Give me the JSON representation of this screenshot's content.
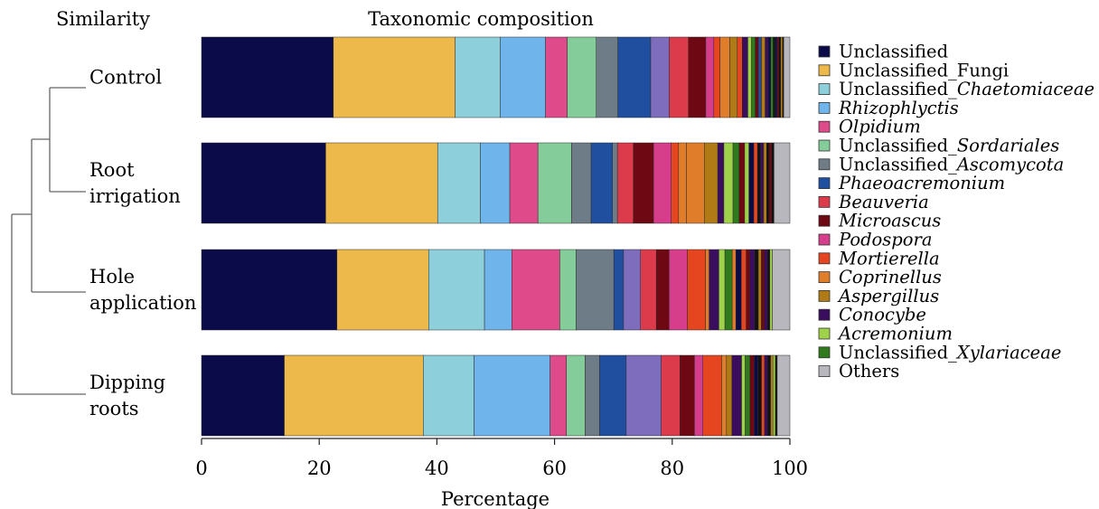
{
  "chart_data": {
    "type": "bar",
    "orientation": "horizontal",
    "stacked": true,
    "title": "Taxonomic composition",
    "dendrogram_title": "Similarity",
    "xlabel": "Percentage",
    "ylabel": "",
    "xlim": [
      0,
      100
    ],
    "xticks": [
      0,
      20,
      40,
      60,
      80,
      100
    ],
    "grid": false,
    "legend_position": "right",
    "categories": [
      "Control",
      "Root irrigation",
      "Hole application",
      "Dipping roots"
    ],
    "category_lines": [
      [
        "Control"
      ],
      [
        "Root",
        "irrigation"
      ],
      [
        "Hole",
        "application"
      ],
      [
        "Dipping",
        "roots"
      ]
    ],
    "legend": [
      {
        "label": "Unclassified",
        "color": "#0b0b4a",
        "italic": false
      },
      {
        "label": "Unclassified_Fungi",
        "color": "#ecb94a",
        "italic": false
      },
      {
        "label": "Unclassified_",
        "label_italic": "Chaetomiaceae",
        "color": "#8ecfdc",
        "italic": false
      },
      {
        "label": "Rhizophlyctis",
        "color": "#6fb4ea",
        "italic": true
      },
      {
        "label": "Olpidium",
        "color": "#df4b8a",
        "italic": true
      },
      {
        "label": "Unclassified_",
        "label_italic": "Sordariales",
        "color": "#84cc9a",
        "italic": false
      },
      {
        "label": "Unclassified_",
        "label_italic": "Ascomycota",
        "color": "#6e7c88",
        "italic": false
      },
      {
        "label": "Phaeoacremonium",
        "color": "#1f4f9e",
        "italic": true
      },
      {
        "label": "Beauveria",
        "color": "#dc3b4c",
        "italic": true
      },
      {
        "label": "Microascus",
        "color": "#6e0812",
        "italic": true
      },
      {
        "label": "Podospora",
        "color": "#d63e8c",
        "italic": true
      },
      {
        "label": "Mortierella",
        "color": "#e5461f",
        "italic": true
      },
      {
        "label": "Coprinellus",
        "color": "#e07d2a",
        "italic": true
      },
      {
        "label": "Aspergillus",
        "color": "#b07a17",
        "italic": true
      },
      {
        "label": "Conocybe",
        "color": "#3b0d5e",
        "italic": true
      },
      {
        "label": "Acremonium",
        "color": "#9fd14a",
        "italic": true
      },
      {
        "label": "Unclassified_",
        "label_italic": "Xylariaceae",
        "color": "#2f7a1c",
        "italic": false
      },
      {
        "label": "Others",
        "color": "#b7b7bd",
        "italic": false
      }
    ],
    "series": [
      {
        "name": "Control",
        "values": [
          {
            "value": 21.3,
            "color": "#0b0b4a"
          },
          {
            "value": 19.7,
            "color": "#ecb94a"
          },
          {
            "value": 7.3,
            "color": "#8ecfdc"
          },
          {
            "value": 7.3,
            "color": "#6fb4ea"
          },
          {
            "value": 3.5,
            "color": "#df4b8a"
          },
          {
            "value": 4.7,
            "color": "#84cc9a"
          },
          {
            "value": 3.5,
            "color": "#6e7c88"
          },
          {
            "value": 5.3,
            "color": "#1f4f9e"
          },
          {
            "value": 3.0,
            "color": "#7d6dbc"
          },
          {
            "value": 3.1,
            "color": "#dc3b4c"
          },
          {
            "value": 2.8,
            "color": "#6e0812"
          },
          {
            "value": 1.3,
            "color": "#d63e8c"
          },
          {
            "value": 1.0,
            "color": "#e5461f"
          },
          {
            "value": 1.6,
            "color": "#e07d2a"
          },
          {
            "value": 1.2,
            "color": "#b07a17"
          },
          {
            "value": 0.8,
            "color": "#e5461f"
          },
          {
            "value": 0.9,
            "color": "#3b0d5e"
          },
          {
            "value": 0.6,
            "color": "#9fd14a"
          },
          {
            "value": 0.6,
            "color": "#2f7a1c"
          },
          {
            "value": 0.5,
            "color": "#6e0812"
          },
          {
            "value": 0.5,
            "color": "#1f4f9e"
          },
          {
            "value": 0.6,
            "color": "#b07a17"
          },
          {
            "value": 0.5,
            "color": "#3b0d5e"
          },
          {
            "value": 0.4,
            "color": "#0b0b4a"
          },
          {
            "value": 0.4,
            "color": "#2f7a1c"
          },
          {
            "value": 0.3,
            "color": "#111111"
          },
          {
            "value": 0.3,
            "color": "#0b0b4a"
          },
          {
            "value": 0.3,
            "color": "#6e0812"
          },
          {
            "value": 0.3,
            "color": "#111111"
          },
          {
            "value": 0.3,
            "color": "#b07a17"
          },
          {
            "value": 0.2,
            "color": "#111111"
          },
          {
            "value": 1.0,
            "color": "#b7b7bd"
          }
        ]
      },
      {
        "name": "Root irrigation",
        "values": [
          {
            "value": 20.3,
            "color": "#0b0b4a"
          },
          {
            "value": 18.3,
            "color": "#ecb94a"
          },
          {
            "value": 7.0,
            "color": "#8ecfdc"
          },
          {
            "value": 4.8,
            "color": "#6fb4ea"
          },
          {
            "value": 4.6,
            "color": "#df4b8a"
          },
          {
            "value": 5.5,
            "color": "#84cc9a"
          },
          {
            "value": 3.2,
            "color": "#6e7c88"
          },
          {
            "value": 3.5,
            "color": "#1f4f9e"
          },
          {
            "value": 0.8,
            "color": "#6e7c88"
          },
          {
            "value": 2.6,
            "color": "#dc3b4c"
          },
          {
            "value": 3.3,
            "color": "#6e0812"
          },
          {
            "value": 2.9,
            "color": "#d63e8c"
          },
          {
            "value": 1.2,
            "color": "#e5461f"
          },
          {
            "value": 1.3,
            "color": "#e07d2a"
          },
          {
            "value": 2.9,
            "color": "#e07d2a"
          },
          {
            "value": 2.2,
            "color": "#b07a17"
          },
          {
            "value": 1.0,
            "color": "#3b0d5e"
          },
          {
            "value": 1.5,
            "color": "#9fd14a"
          },
          {
            "value": 1.0,
            "color": "#2f7a1c"
          },
          {
            "value": 0.9,
            "color": "#6e0812"
          },
          {
            "value": 0.7,
            "color": "#9fd14a"
          },
          {
            "value": 0.8,
            "color": "#0b0b4a"
          },
          {
            "value": 0.6,
            "color": "#e5461f"
          },
          {
            "value": 0.5,
            "color": "#111111"
          },
          {
            "value": 0.5,
            "color": "#3b0d5e"
          },
          {
            "value": 0.5,
            "color": "#b07a17"
          },
          {
            "value": 0.4,
            "color": "#111111"
          },
          {
            "value": 0.4,
            "color": "#6e0812"
          },
          {
            "value": 0.4,
            "color": "#111111"
          },
          {
            "value": 2.6,
            "color": "#b7b7bd"
          }
        ]
      },
      {
        "name": "Hole application",
        "values": [
          {
            "value": 22.3,
            "color": "#0b0b4a"
          },
          {
            "value": 15.1,
            "color": "#ecb94a"
          },
          {
            "value": 9.2,
            "color": "#8ecfdc"
          },
          {
            "value": 4.5,
            "color": "#6fb4ea"
          },
          {
            "value": 7.9,
            "color": "#df4b8a"
          },
          {
            "value": 2.7,
            "color": "#84cc9a"
          },
          {
            "value": 6.2,
            "color": "#6e7c88"
          },
          {
            "value": 1.6,
            "color": "#1f4f9e"
          },
          {
            "value": 2.8,
            "color": "#7d6dbc"
          },
          {
            "value": 2.6,
            "color": "#dc3b4c"
          },
          {
            "value": 2.1,
            "color": "#6e0812"
          },
          {
            "value": 3.0,
            "color": "#d63e8c"
          },
          {
            "value": 3.0,
            "color": "#e5461f"
          },
          {
            "value": 0.6,
            "color": "#e07d2a"
          },
          {
            "value": 1.6,
            "color": "#3b0d5e"
          },
          {
            "value": 1.0,
            "color": "#9fd14a"
          },
          {
            "value": 1.2,
            "color": "#2f7a1c"
          },
          {
            "value": 0.6,
            "color": "#e07d2a"
          },
          {
            "value": 0.9,
            "color": "#0b0b4a"
          },
          {
            "value": 0.8,
            "color": "#e5461f"
          },
          {
            "value": 0.6,
            "color": "#6e0812"
          },
          {
            "value": 0.8,
            "color": "#3b0d5e"
          },
          {
            "value": 0.6,
            "color": "#111111"
          },
          {
            "value": 0.5,
            "color": "#b07a17"
          },
          {
            "value": 0.5,
            "color": "#6e0812"
          },
          {
            "value": 0.5,
            "color": "#3b0d5e"
          },
          {
            "value": 0.4,
            "color": "#111111"
          },
          {
            "value": 0.4,
            "color": "#9fd14a"
          },
          {
            "value": 2.9,
            "color": "#b7b7bd"
          }
        ]
      },
      {
        "name": "Dipping roots",
        "values": [
          {
            "value": 13.7,
            "color": "#0b0b4a"
          },
          {
            "value": 23.0,
            "color": "#ecb94a"
          },
          {
            "value": 8.4,
            "color": "#8ecfdc"
          },
          {
            "value": 12.6,
            "color": "#6fb4ea"
          },
          {
            "value": 2.7,
            "color": "#df4b8a"
          },
          {
            "value": 3.1,
            "color": "#84cc9a"
          },
          {
            "value": 2.4,
            "color": "#6e7c88"
          },
          {
            "value": 4.4,
            "color": "#1f4f9e"
          },
          {
            "value": 5.8,
            "color": "#7d6dbc"
          },
          {
            "value": 3.1,
            "color": "#dc3b4c"
          },
          {
            "value": 2.4,
            "color": "#6e0812"
          },
          {
            "value": 1.4,
            "color": "#d63e8c"
          },
          {
            "value": 3.1,
            "color": "#e5461f"
          },
          {
            "value": 0.8,
            "color": "#e07d2a"
          },
          {
            "value": 0.9,
            "color": "#b07a17"
          },
          {
            "value": 1.6,
            "color": "#3b0d5e"
          },
          {
            "value": 0.6,
            "color": "#9fd14a"
          },
          {
            "value": 0.8,
            "color": "#2f7a1c"
          },
          {
            "value": 0.7,
            "color": "#6e0812"
          },
          {
            "value": 0.6,
            "color": "#0b0b4a"
          },
          {
            "value": 0.6,
            "color": "#111111"
          },
          {
            "value": 0.5,
            "color": "#e5461f"
          },
          {
            "value": 0.5,
            "color": "#3b0d5e"
          },
          {
            "value": 0.5,
            "color": "#111111"
          },
          {
            "value": 0.4,
            "color": "#b07a17"
          },
          {
            "value": 0.4,
            "color": "#9fd14a"
          },
          {
            "value": 0.3,
            "color": "#111111"
          },
          {
            "value": 2.1,
            "color": "#b7b7bd"
          }
        ]
      }
    ]
  }
}
